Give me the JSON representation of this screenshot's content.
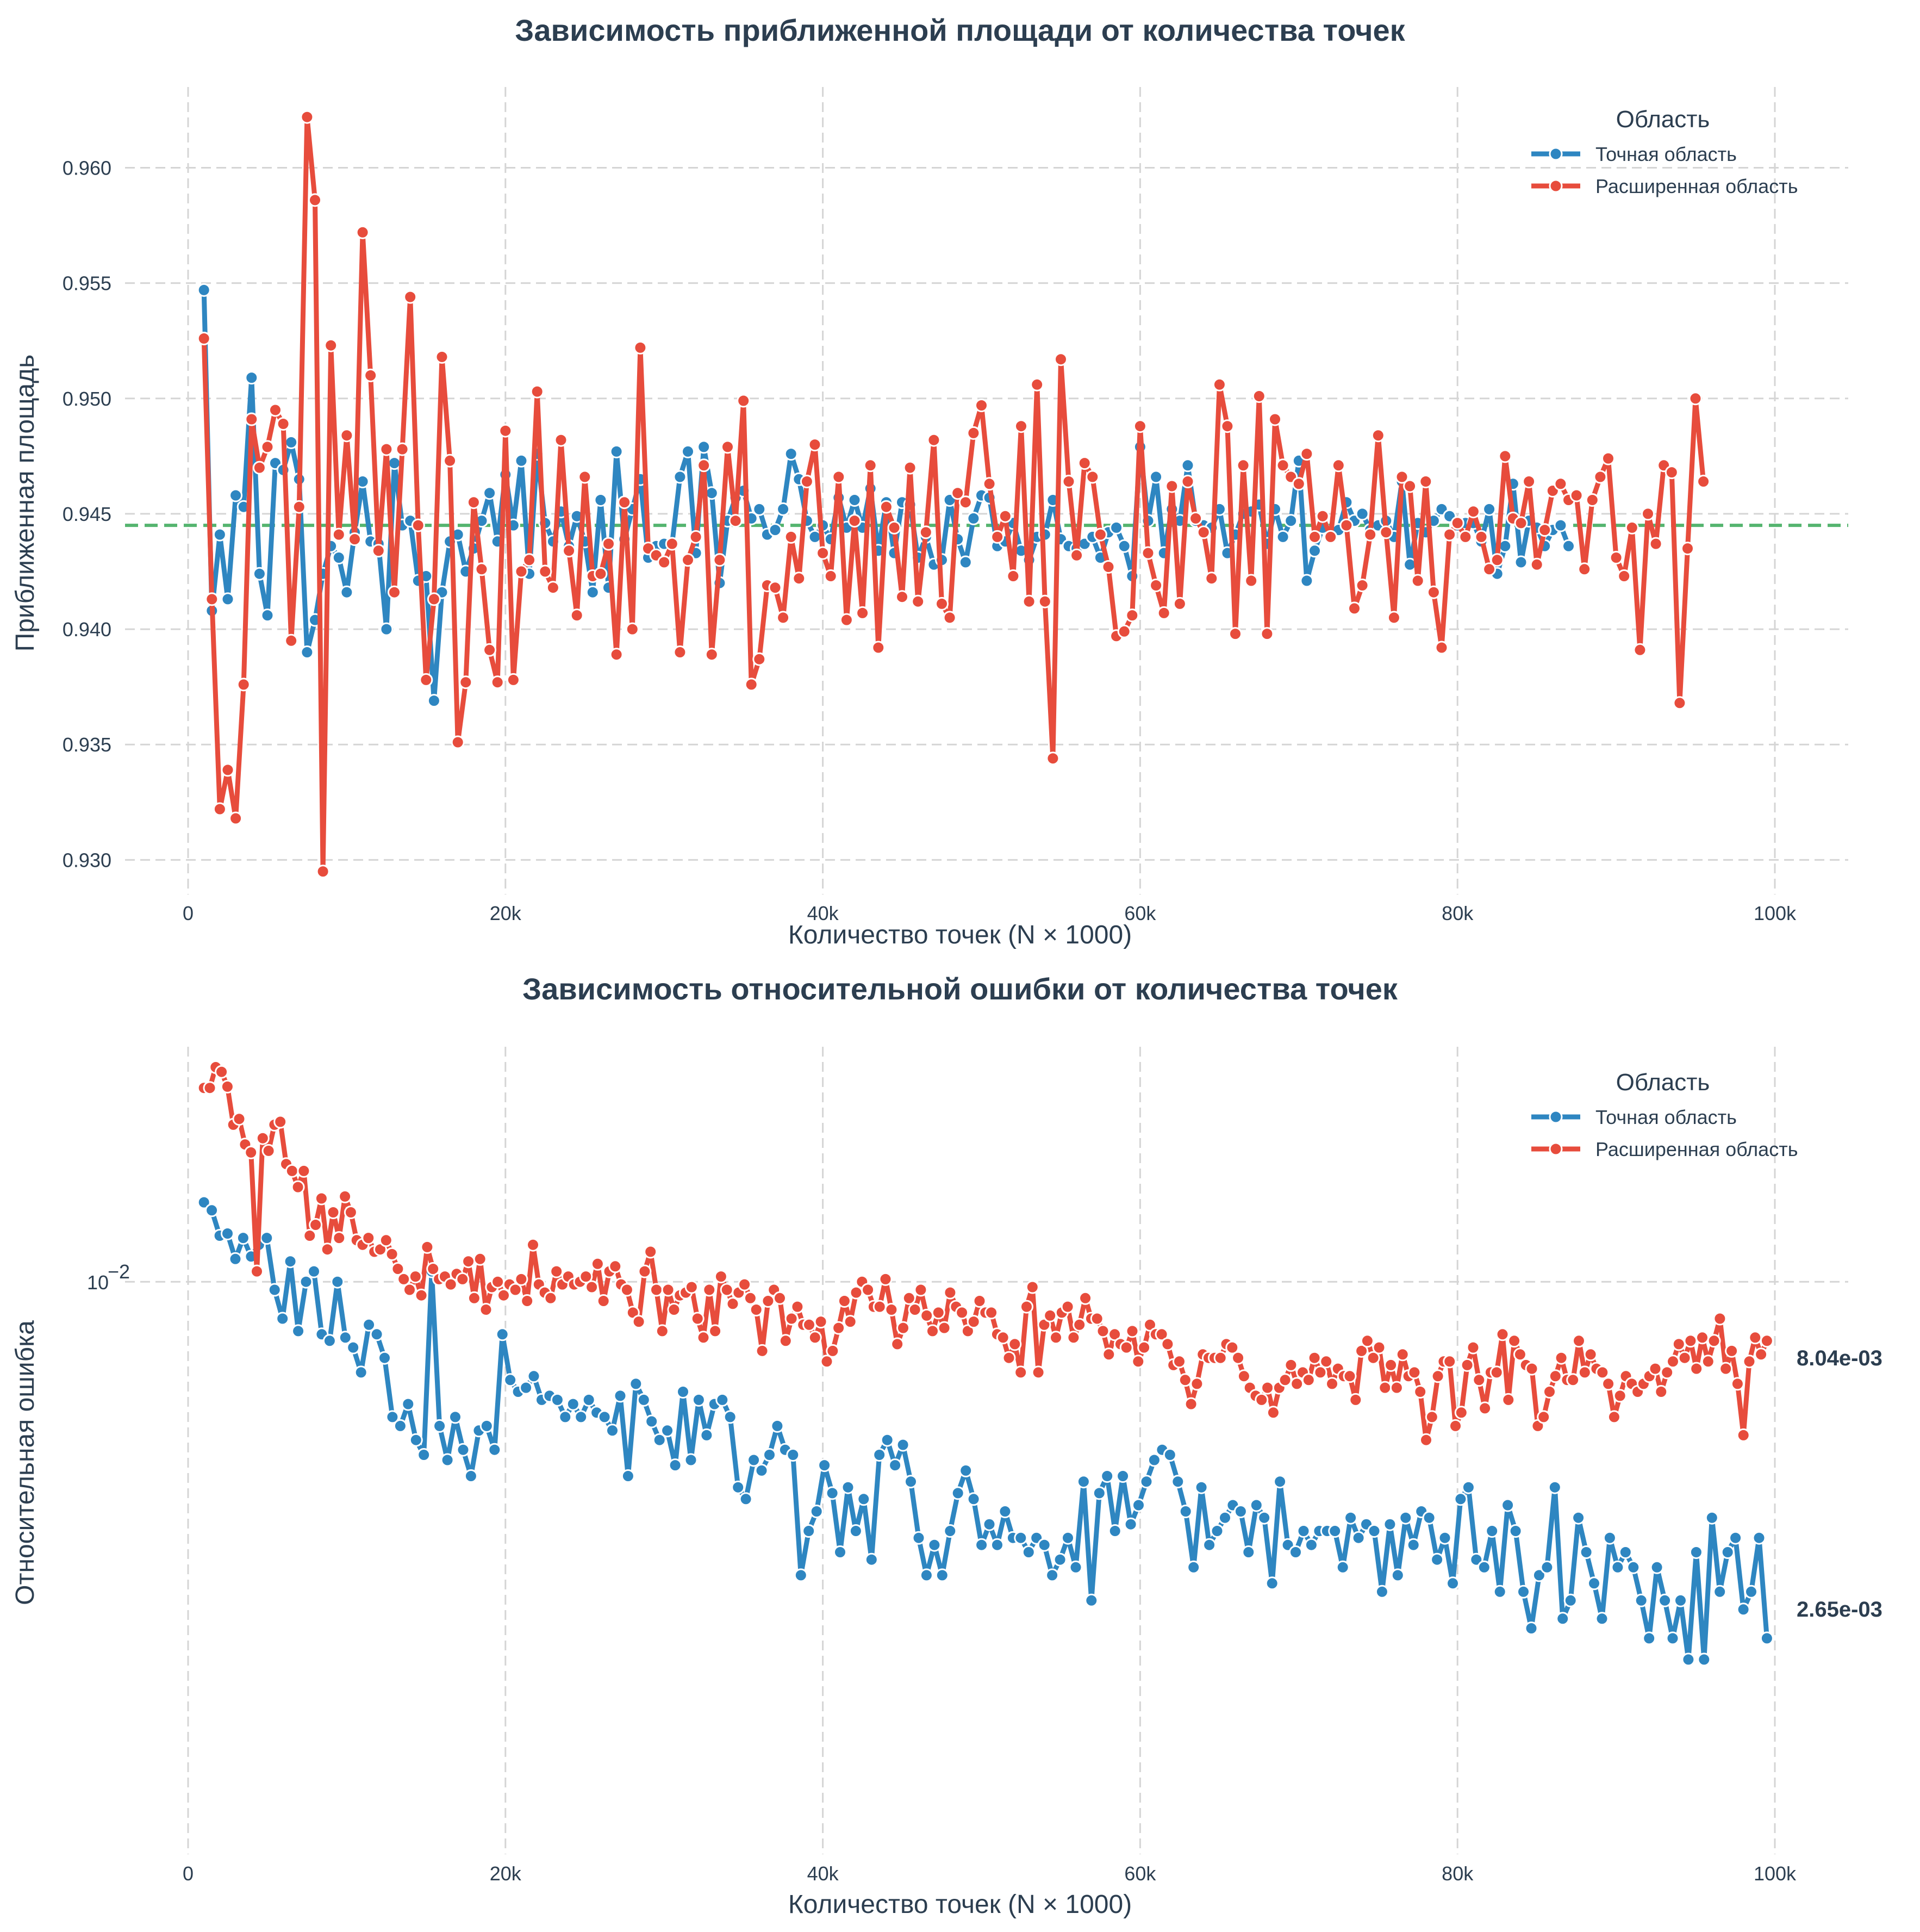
{
  "chart_data": [
    {
      "type": "line",
      "title": "Зависимость приближенной площади от количества точек",
      "xlabel": "Количество точек (N × 1000)",
      "ylabel": "Приближенная площадь",
      "xlim": [
        -2000,
        105000
      ],
      "ylim": [
        0.9285,
        0.9635
      ],
      "x_ticks": [
        0,
        20000,
        40000,
        60000,
        80000,
        100000
      ],
      "x_tick_labels": [
        "0",
        "20k",
        "40k",
        "60k",
        "80k",
        "100k"
      ],
      "y_ticks": [
        0.93,
        0.935,
        0.94,
        0.945,
        0.95,
        0.955,
        0.96
      ],
      "y_tick_labels": [
        "0.930",
        "0.935",
        "0.940",
        "0.945",
        "0.950",
        "0.955",
        "0.960"
      ],
      "y_scale": "linear",
      "grid": true,
      "legend": {
        "title": "Область",
        "placement": "top-right"
      },
      "reference_line": {
        "y": 0.9445,
        "color": "#55b46f",
        "style": "dashed"
      },
      "x_start": 1000,
      "x_step": 500,
      "series": [
        {
          "name": "Точная область",
          "color": "#2e86c1",
          "values": [
            0.9547,
            0.9408,
            0.9441,
            0.9413,
            0.9458,
            0.9453,
            0.9509,
            0.9424,
            0.9406,
            0.9472,
            0.9469,
            0.9481,
            0.9465,
            0.939,
            0.9404,
            0.9424,
            0.9436,
            0.9431,
            0.9416,
            0.9442,
            0.9464,
            0.9438,
            0.9437,
            0.94,
            0.9472,
            0.9445,
            0.9447,
            0.9421,
            0.9423,
            0.9369,
            0.9416,
            0.9438,
            0.9441,
            0.9425,
            0.9435,
            0.9447,
            0.9459,
            0.9438,
            0.9467,
            0.9445,
            0.9473,
            0.9424,
            0.9476,
            0.9446,
            0.9438,
            0.9451,
            0.9436,
            0.9449,
            0.9438,
            0.9416,
            0.9456,
            0.9418,
            0.9477,
            0.9439,
            0.9452,
            0.9465,
            0.9431,
            0.9436,
            0.9437,
            0.9437,
            0.9466,
            0.9477,
            0.9433,
            0.9479,
            0.9459,
            0.942,
            0.9447,
            0.9457,
            0.946,
            0.9448,
            0.9452,
            0.9441,
            0.9443,
            0.9452,
            0.9476,
            0.9465,
            0.9447,
            0.944,
            0.9445,
            0.9439,
            0.9457,
            0.9444,
            0.9456,
            0.9444,
            0.9461,
            0.9434,
            0.9455,
            0.9433,
            0.9455,
            0.9454,
            0.9431,
            0.944,
            0.9428,
            0.943,
            0.9456,
            0.9439,
            0.9429,
            0.9448,
            0.9458,
            0.9457,
            0.9436,
            0.9438,
            0.9446,
            0.9434,
            0.943,
            0.944,
            0.9441,
            0.9456,
            0.9439,
            0.9436,
            0.9435,
            0.9437,
            0.944,
            0.9431,
            0.9442,
            0.9444,
            0.9436,
            0.9423,
            0.9479,
            0.9447,
            0.9466,
            0.9433,
            0.9452,
            0.9447,
            0.9471,
            0.9447,
            0.9445,
            0.9444,
            0.9452,
            0.9433,
            0.9441,
            0.945,
            0.9451,
            0.9454,
            0.9437,
            0.9452,
            0.944,
            0.9447,
            0.9473,
            0.9421,
            0.9434,
            0.9444,
            0.944,
            0.9443,
            0.9455,
            0.9447,
            0.945,
            0.9443,
            0.9445,
            0.9447,
            0.944,
            0.9464,
            0.9428,
            0.9446,
            0.9442,
            0.9447,
            0.9452,
            0.9449,
            0.9445,
            0.9446,
            0.9446,
            0.9438,
            0.9452,
            0.9424,
            0.9436,
            0.9463,
            0.9429,
            0.9447,
            0.9444,
            0.9436,
            0.9443,
            0.9445,
            0.9436
          ]
        },
        {
          "name": "Расширенная область",
          "color": "#e74c3c",
          "values": [
            0.9526,
            0.9413,
            0.9322,
            0.9339,
            0.9318,
            0.9376,
            0.9491,
            0.947,
            0.9479,
            0.9495,
            0.9489,
            0.9395,
            0.9453,
            0.9622,
            0.9586,
            0.9295,
            0.9523,
            0.9441,
            0.9484,
            0.9439,
            0.9572,
            0.951,
            0.9434,
            0.9478,
            0.9416,
            0.9478,
            0.9544,
            0.9445,
            0.9378,
            0.9413,
            0.9518,
            0.9473,
            0.9351,
            0.9377,
            0.9455,
            0.9426,
            0.9391,
            0.9377,
            0.9486,
            0.9378,
            0.9425,
            0.943,
            0.9503,
            0.9425,
            0.9418,
            0.9482,
            0.9434,
            0.9406,
            0.9466,
            0.9423,
            0.9424,
            0.9437,
            0.9389,
            0.9455,
            0.94,
            0.9522,
            0.9435,
            0.9432,
            0.9429,
            0.9437,
            0.939,
            0.943,
            0.944,
            0.9471,
            0.9389,
            0.943,
            0.9479,
            0.9447,
            0.9499,
            0.9376,
            0.9387,
            0.9419,
            0.9418,
            0.9405,
            0.944,
            0.9422,
            0.9464,
            0.948,
            0.9433,
            0.9423,
            0.9466,
            0.9404,
            0.9447,
            0.9407,
            0.9471,
            0.9392,
            0.9453,
            0.9444,
            0.9414,
            0.947,
            0.9412,
            0.9442,
            0.9482,
            0.9411,
            0.9405,
            0.9459,
            0.9455,
            0.9485,
            0.9497,
            0.9463,
            0.944,
            0.9449,
            0.9423,
            0.9488,
            0.9412,
            0.9506,
            0.9412,
            0.9344,
            0.9517,
            0.9464,
            0.9432,
            0.9472,
            0.9466,
            0.9441,
            0.9427,
            0.9397,
            0.9399,
            0.9406,
            0.9488,
            0.9433,
            0.9419,
            0.9407,
            0.9462,
            0.9411,
            0.9464,
            0.9448,
            0.9442,
            0.9422,
            0.9506,
            0.9488,
            0.9398,
            0.9471,
            0.9421,
            0.9501,
            0.9398,
            0.9491,
            0.9471,
            0.9466,
            0.9463,
            0.9476,
            0.944,
            0.9449,
            0.944,
            0.9471,
            0.9445,
            0.9409,
            0.9419,
            0.9441,
            0.9484,
            0.9442,
            0.9405,
            0.9466,
            0.9462,
            0.9421,
            0.9464,
            0.9416,
            0.9392,
            0.9441,
            0.9446,
            0.944,
            0.9451,
            0.944,
            0.9426,
            0.943,
            0.9475,
            0.9448,
            0.9446,
            0.9464,
            0.9428,
            0.9443,
            0.946,
            0.9463,
            0.9456,
            0.9458,
            0.9426,
            0.9456,
            0.9466,
            0.9474,
            0.9431,
            0.9423,
            0.9444,
            0.9391,
            0.945,
            0.9437,
            0.9471,
            0.9468,
            0.9368,
            0.9435,
            0.95,
            0.9464
          ]
        }
      ]
    },
    {
      "type": "line",
      "title": "Зависимость относительной ошибки от количества точек",
      "xlabel": "Количество точек (N × 1000)",
      "ylabel": "Относительная ошибка",
      "xlim": [
        -2000,
        105000
      ],
      "y_scale": "log",
      "ylim": [
        0.00115,
        0.0243
      ],
      "x_ticks": [
        0,
        20000,
        40000,
        60000,
        80000,
        100000
      ],
      "x_tick_labels": [
        "0",
        "20k",
        "40k",
        "60k",
        "80k",
        "100k"
      ],
      "y_ticks": [
        0.01
      ],
      "y_tick_labels": [
        "10",
        "−2"
      ],
      "grid": true,
      "legend": {
        "title": "Область",
        "placement": "top-right"
      },
      "x_start": 1000,
      "x_step": 500,
      "end_labels": [
        "8.04e-03",
        "2.65e-03"
      ],
      "series": [
        {
          "name": "Точная область",
          "color": "#2e86c1",
          "values": [
            0.0135,
            0.0131,
            0.0119,
            0.012,
            0.0109,
            0.0118,
            0.011,
            0.0115,
            0.0118,
            0.0097,
            0.0087,
            0.0108,
            0.0083,
            0.01,
            0.0104,
            0.0082,
            0.008,
            0.01,
            0.0081,
            0.0078,
            0.0071,
            0.0085,
            0.0082,
            0.0075,
            0.006,
            0.0058,
            0.0063,
            0.0055,
            0.0052,
            0.0104,
            0.0058,
            0.0051,
            0.006,
            0.0053,
            0.0048,
            0.0057,
            0.0058,
            0.0053,
            0.0082,
            0.0069,
            0.0066,
            0.0067,
            0.007,
            0.0064,
            0.0065,
            0.0064,
            0.006,
            0.0063,
            0.006,
            0.0064,
            0.0061,
            0.006,
            0.0057,
            0.0065,
            0.0048,
            0.0068,
            0.0064,
            0.0059,
            0.0055,
            0.0057,
            0.005,
            0.0066,
            0.0051,
            0.0064,
            0.0056,
            0.0063,
            0.0064,
            0.006,
            0.0046,
            0.0044,
            0.0051,
            0.0049,
            0.0052,
            0.0058,
            0.0053,
            0.0052,
            0.0033,
            0.0039,
            0.0042,
            0.005,
            0.0045,
            0.0036,
            0.0046,
            0.0039,
            0.0044,
            0.0035,
            0.0052,
            0.0055,
            0.005,
            0.0054,
            0.0047,
            0.0038,
            0.0033,
            0.0037,
            0.0033,
            0.0039,
            0.0045,
            0.0049,
            0.0044,
            0.0037,
            0.004,
            0.0037,
            0.0042,
            0.0038,
            0.0038,
            0.0036,
            0.0038,
            0.0037,
            0.0033,
            0.0035,
            0.0038,
            0.0034,
            0.0047,
            0.003,
            0.0045,
            0.0048,
            0.0039,
            0.0048,
            0.004,
            0.0043,
            0.0047,
            0.0051,
            0.0053,
            0.0052,
            0.0047,
            0.0042,
            0.0034,
            0.0046,
            0.0037,
            0.0039,
            0.0041,
            0.0043,
            0.0042,
            0.0036,
            0.0043,
            0.0041,
            0.0032,
            0.0047,
            0.0037,
            0.0036,
            0.0039,
            0.0037,
            0.0039,
            0.0039,
            0.0039,
            0.0034,
            0.0041,
            0.0038,
            0.004,
            0.0039,
            0.0031,
            0.004,
            0.0033,
            0.0041,
            0.0037,
            0.0042,
            0.0041,
            0.0035,
            0.0038,
            0.0032,
            0.0044,
            0.0046,
            0.0035,
            0.0034,
            0.0039,
            0.0031,
            0.0043,
            0.0039,
            0.0031,
            0.0027,
            0.0033,
            0.0034,
            0.0046,
            0.0028,
            0.003,
            0.0041,
            0.0036,
            0.0032,
            0.0028,
            0.0038,
            0.0034,
            0.0036,
            0.0034,
            0.003,
            0.0026,
            0.0034,
            0.003,
            0.0026,
            0.003,
            0.0024,
            0.0036,
            0.0024,
            0.0041,
            0.0031,
            0.0036,
            0.0038,
            0.0029,
            0.0031,
            0.0038,
            0.0026
          ]
        },
        {
          "name": "Расширенная область",
          "color": "#e74c3c",
          "values": [
            0.0208,
            0.0208,
            0.0225,
            0.0221,
            0.0209,
            0.0181,
            0.0185,
            0.0168,
            0.0163,
            0.0104,
            0.0172,
            0.0164,
            0.0181,
            0.0183,
            0.0156,
            0.0152,
            0.0143,
            0.0152,
            0.0119,
            0.0124,
            0.0137,
            0.0113,
            0.013,
            0.0118,
            0.0138,
            0.013,
            0.0117,
            0.0115,
            0.0118,
            0.0112,
            0.0113,
            0.0117,
            0.0111,
            0.0105,
            0.0101,
            0.0097,
            0.0102,
            0.0095,
            0.0114,
            0.0105,
            0.0101,
            0.0102,
            0.0099,
            0.0103,
            0.0101,
            0.0108,
            0.0094,
            0.0109,
            0.009,
            0.0098,
            0.01,
            0.0095,
            0.0099,
            0.0097,
            0.0101,
            0.0093,
            0.0115,
            0.0099,
            0.0096,
            0.0094,
            0.0104,
            0.0099,
            0.0102,
            0.0099,
            0.01,
            0.0102,
            0.0098,
            0.0107,
            0.0093,
            0.0104,
            0.0106,
            0.0099,
            0.0097,
            0.0089,
            0.0086,
            0.0104,
            0.0112,
            0.0097,
            0.0083,
            0.0097,
            0.009,
            0.0095,
            0.0096,
            0.0098,
            0.0087,
            0.0081,
            0.0097,
            0.0083,
            0.0102,
            0.0097,
            0.0092,
            0.0096,
            0.0099,
            0.0094,
            0.009,
            0.0077,
            0.0093,
            0.0097,
            0.0094,
            0.008,
            0.0087,
            0.0091,
            0.0085,
            0.0085,
            0.0081,
            0.0086,
            0.0074,
            0.0077,
            0.0084,
            0.0093,
            0.0086,
            0.0096,
            0.01,
            0.0097,
            0.0091,
            0.0091,
            0.0101,
            0.009,
            0.0079,
            0.0084,
            0.0094,
            0.009,
            0.0097,
            0.0088,
            0.0083,
            0.0089,
            0.0084,
            0.0096,
            0.0091,
            0.0089,
            0.0083,
            0.0086,
            0.0093,
            0.0089,
            0.0089,
            0.0082,
            0.0081,
            0.0075,
            0.0079,
            0.0071,
            0.0091,
            0.0098,
            0.0071,
            0.0085,
            0.0088,
            0.0081,
            0.0089,
            0.0091,
            0.0081,
            0.0085,
            0.0094,
            0.0087,
            0.0087,
            0.0083,
            0.0076,
            0.0082,
            0.0079,
            0.0078,
            0.0083,
            0.0074,
            0.0078,
            0.0085,
            0.0082,
            0.0082,
            0.0079,
            0.0073,
            0.0074,
            0.0069,
            0.0063,
            0.0068,
            0.0076,
            0.0075,
            0.0075,
            0.0075,
            0.0079,
            0.0078,
            0.0075,
            0.007,
            0.0067,
            0.0065,
            0.0064,
            0.0067,
            0.0061,
            0.0067,
            0.0069,
            0.0073,
            0.0068,
            0.0071,
            0.0069,
            0.0075,
            0.0071,
            0.0074,
            0.0068,
            0.0072,
            0.007,
            0.007,
            0.0064,
            0.0077,
            0.008,
            0.0075,
            0.0078,
            0.0067,
            0.0073,
            0.0067,
            0.0076,
            0.007,
            0.0071,
            0.0066,
            0.0055,
            0.006,
            0.007,
            0.0074,
            0.0074,
            0.0058,
            0.0061,
            0.0073,
            0.0078,
            0.0069,
            0.0062,
            0.0071,
            0.0071,
            0.0082,
            0.0064,
            0.008,
            0.0076,
            0.0073,
            0.0072,
            0.0058,
            0.006,
            0.0066,
            0.007,
            0.0075,
            0.0069,
            0.0069,
            0.008,
            0.0071,
            0.0076,
            0.0072,
            0.0071,
            0.0068,
            0.006,
            0.0065,
            0.007,
            0.0068,
            0.0066,
            0.0068,
            0.007,
            0.0072,
            0.0066,
            0.0071,
            0.0074,
            0.0079,
            0.0075,
            0.008,
            0.0072,
            0.0081,
            0.0074,
            0.008,
            0.0087,
            0.0072,
            0.0077,
            0.0068,
            0.0056,
            0.0074,
            0.0081,
            0.0076,
            0.008
          ]
        }
      ]
    }
  ]
}
